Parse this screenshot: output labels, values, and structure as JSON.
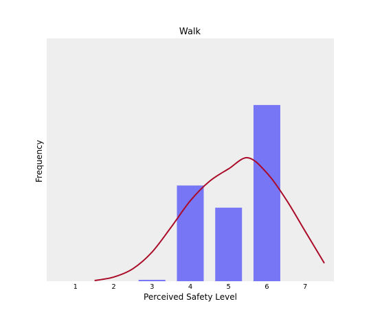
{
  "chart_data": {
    "type": "bar",
    "title": "Walk",
    "xlabel": "Perceived Safety Level",
    "ylabel": "Frequency",
    "categories": [
      "1",
      "2",
      "3",
      "4",
      "5",
      "6",
      "7"
    ],
    "values": [
      0,
      0,
      1,
      69,
      53,
      127,
      0
    ],
    "ylim": [
      0,
      175
    ],
    "yticks_shown": false,
    "grid": false,
    "legend": "none",
    "density_curve": {
      "x": [
        1.5,
        2.0,
        2.5,
        3.0,
        3.5,
        4.0,
        4.5,
        5.0,
        5.5,
        6.0,
        6.5,
        7.0,
        7.5
      ],
      "y": [
        0.5,
        3,
        9,
        21,
        39,
        58,
        72,
        81,
        89,
        78,
        59,
        36,
        13
      ]
    },
    "colors": {
      "bar": "#7777f5",
      "curve": "#aa0a28",
      "plot_background": "#eeeeee"
    }
  }
}
